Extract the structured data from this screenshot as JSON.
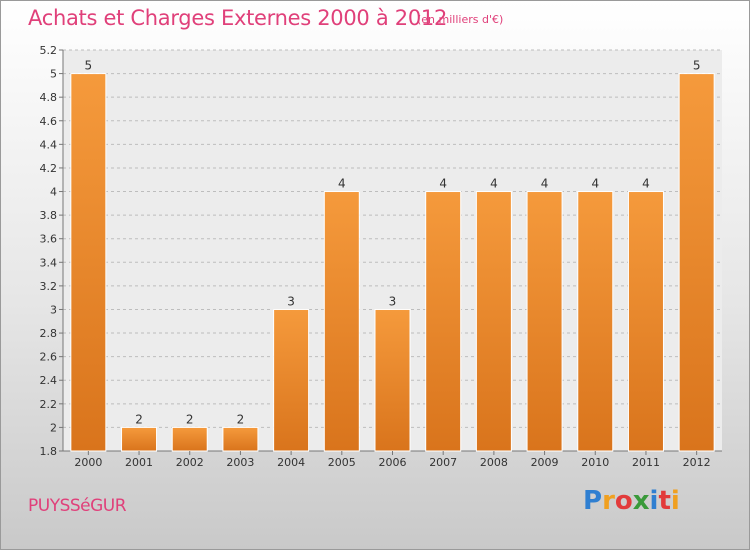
{
  "header": {
    "title": "Achats et Charges Externes 2000 à 2012",
    "unit": "(en milliers d'€)"
  },
  "footer": {
    "place": "PUYSSéGUR",
    "logo_letters": [
      "P",
      "r",
      "o",
      "x",
      "i",
      "t",
      "i"
    ],
    "logo_colors": [
      "#2f7fd1",
      "#f0a020",
      "#e23b3b",
      "#3a9a3a",
      "#2f7fd1",
      "#e23b3b",
      "#f0a020"
    ]
  },
  "colors": {
    "bar": "#f59a3c",
    "bar_dark": "#d9741c",
    "text_accent": "#e0407a"
  },
  "chart_data": {
    "type": "bar",
    "categories": [
      "2000",
      "2001",
      "2002",
      "2003",
      "2004",
      "2005",
      "2006",
      "2007",
      "2008",
      "2009",
      "2010",
      "2011",
      "2012"
    ],
    "values": [
      5,
      2,
      2,
      2,
      3,
      4,
      3,
      4,
      4,
      4,
      4,
      4,
      5
    ],
    "bar_heights": [
      5.0,
      2.0,
      2.0,
      2.0,
      3.0,
      4.0,
      3.0,
      4.0,
      4.0,
      4.0,
      4.0,
      4.0,
      5.0
    ],
    "data_labels": [
      "5",
      "2",
      "2",
      "2",
      "3",
      "4",
      "3",
      "4",
      "4",
      "4",
      "4",
      "4",
      "5"
    ],
    "yticks": [
      "1.8",
      "2",
      "2.2",
      "2.4",
      "2.6",
      "2.8",
      "3",
      "3.2",
      "3.4",
      "3.6",
      "3.8",
      "4",
      "4.2",
      "4.4",
      "4.6",
      "4.8",
      "5",
      "5.2"
    ],
    "ylim": [
      1.8,
      5.2
    ],
    "ytick_step": 0.2,
    "grid": "horizontal dashed",
    "title": "Achats et Charges Externes 2000 à 2012",
    "xlabel": "",
    "ylabel": ""
  }
}
